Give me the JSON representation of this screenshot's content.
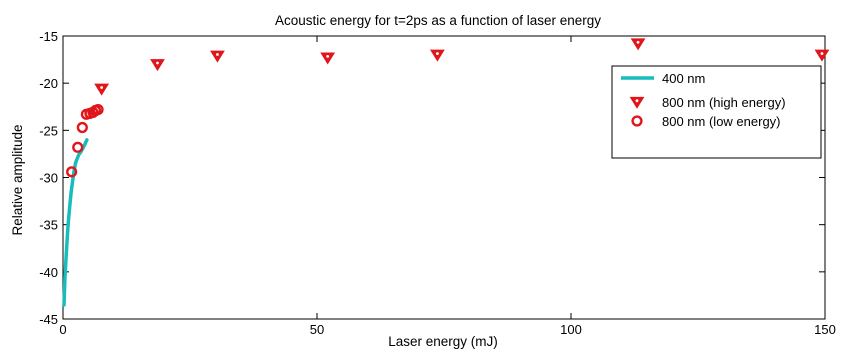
{
  "chart_data": {
    "type": "scatter",
    "title": "Acoustic energy for t=2ps as a function of laser energy",
    "xlabel": "Laser energy (mJ)",
    "ylabel": "Relative amplitude",
    "xlim": [
      0,
      150
    ],
    "ylim": [
      -45,
      -15
    ],
    "xticks": [
      0,
      50,
      100,
      150
    ],
    "yticks": [
      -45,
      -40,
      -35,
      -30,
      -25,
      -20,
      -15
    ],
    "xtick_labels": [
      "0",
      "50",
      "100",
      "150"
    ],
    "ytick_labels": [
      "-45",
      "-40",
      "-35",
      "-30",
      "-25",
      "-20",
      "-15"
    ],
    "grid": false,
    "legend_position": "top-right",
    "series": [
      {
        "name": "400 nm",
        "kind": "line",
        "color": "#17bdbd",
        "x": [
          0.2,
          0.4,
          0.7,
          1.0,
          1.3,
          1.6,
          1.9,
          2.2,
          2.5,
          2.8,
          3.1,
          3.5,
          3.9,
          4.3,
          4.7
        ],
        "y": [
          -43.5,
          -40.5,
          -37.5,
          -35.0,
          -33.2,
          -31.6,
          -30.3,
          -29.2,
          -28.4,
          -28.0,
          -27.6,
          -27.3,
          -26.9,
          -26.5,
          -26.0
        ]
      },
      {
        "name": "800 nm (high energy)",
        "kind": "scatter",
        "marker": "triangle-down",
        "color": "#e0161b",
        "x": [
          7.6,
          18.6,
          30.4,
          52.1,
          73.7,
          113.2,
          149.4
        ],
        "y": [
          -20.6,
          -18.0,
          -17.1,
          -17.3,
          -17.0,
          -15.8,
          -17.0
        ]
      },
      {
        "name": "800 nm (low energy)",
        "kind": "scatter",
        "marker": "circle-open",
        "color": "#e0161b",
        "x": [
          1.7,
          2.9,
          3.8,
          4.6,
          5.3,
          5.9,
          6.4,
          6.9
        ],
        "y": [
          -29.4,
          -26.8,
          -24.7,
          -23.3,
          -23.2,
          -23.1,
          -22.9,
          -22.8
        ]
      }
    ]
  }
}
